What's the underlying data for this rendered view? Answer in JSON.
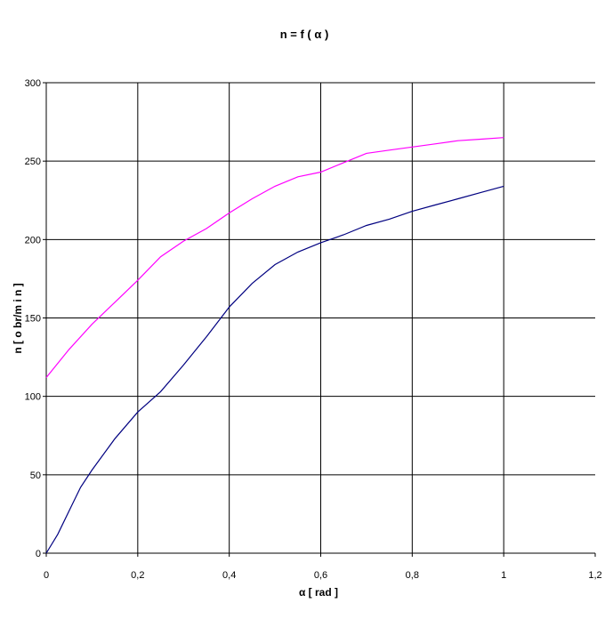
{
  "chart_data": {
    "type": "line",
    "title": "n = f ( α )",
    "xlabel": "α  [ rad ]",
    "ylabel": "n  [ o br/m i n ]",
    "xlim": [
      0,
      1.2
    ],
    "ylim": [
      0,
      300
    ],
    "x_ticks": [
      0,
      0.2,
      0.4,
      0.6,
      0.8,
      1,
      1.2
    ],
    "x_tick_labels": [
      "0",
      "0,2",
      "0,4",
      "0,6",
      "0,8",
      "1",
      "1,2"
    ],
    "y_ticks": [
      0,
      50,
      100,
      150,
      200,
      250,
      300
    ],
    "y_tick_labels": [
      "0",
      "50",
      "100",
      "150",
      "200",
      "250",
      "300"
    ],
    "grid": true,
    "legend": "none",
    "series": [
      {
        "color": "#ff00ff",
        "x": [
          0,
          0.05,
          0.1,
          0.15,
          0.2,
          0.25,
          0.3,
          0.35,
          0.4,
          0.45,
          0.5,
          0.55,
          0.6,
          0.65,
          0.7,
          0.75,
          0.8,
          0.85,
          0.9,
          0.95,
          1.0
        ],
        "y": [
          112,
          130,
          146,
          160,
          174,
          189,
          199,
          207,
          217,
          226,
          234,
          240,
          243,
          249,
          255,
          257,
          259,
          261,
          263,
          264,
          265
        ]
      },
      {
        "color": "#000080",
        "x": [
          0,
          0.025,
          0.05,
          0.075,
          0.1,
          0.15,
          0.2,
          0.25,
          0.3,
          0.35,
          0.4,
          0.45,
          0.5,
          0.55,
          0.6,
          0.65,
          0.7,
          0.75,
          0.8,
          0.85,
          0.9,
          0.95,
          1.0
        ],
        "y": [
          0,
          12,
          27,
          42,
          53,
          73,
          90,
          103,
          120,
          138,
          157,
          172,
          184,
          192,
          198,
          203,
          209,
          213,
          218,
          222,
          226,
          230,
          234
        ]
      }
    ]
  }
}
